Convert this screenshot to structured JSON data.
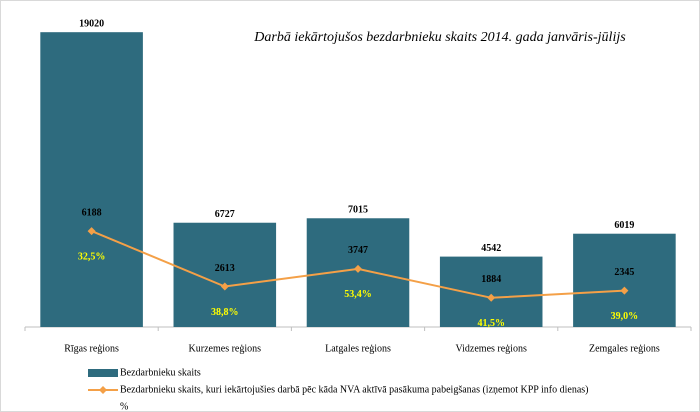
{
  "chart_data": {
    "type": "bar_line",
    "title": "Darbā iekārtojušos bezdarbnieku skaits 2014. gada janvāris-jūlijs",
    "categories": [
      "Rīgas reģions",
      "Kurzemes reģions",
      "Latgales reģions",
      "Vidzemes reģions",
      "Zemgales reģions"
    ],
    "ylim": [
      0,
      20000
    ],
    "series": [
      {
        "name": "Bezdarbnieku skaits",
        "type": "bar",
        "color": "#2e6b7e",
        "values": [
          19020,
          6727,
          7015,
          4542,
          6019
        ]
      },
      {
        "name": "Bezdarbnieku skaits, kuri  iekārtojušies darbā pēc kāda NVA aktīvā pasākuma pabeigšanas (izņemot KPP info dienas)",
        "type": "line",
        "color": "#f4a047",
        "values": [
          6188,
          2613,
          3747,
          1884,
          2345
        ]
      },
      {
        "name": "%",
        "type": "label",
        "color": "#ffff00",
        "values": [
          32.5,
          38.8,
          53.4,
          41.5,
          39.0
        ],
        "value_labels": [
          "32,5%",
          "38,8%",
          "53,4%",
          "41,5%",
          "39,0%"
        ]
      }
    ]
  }
}
